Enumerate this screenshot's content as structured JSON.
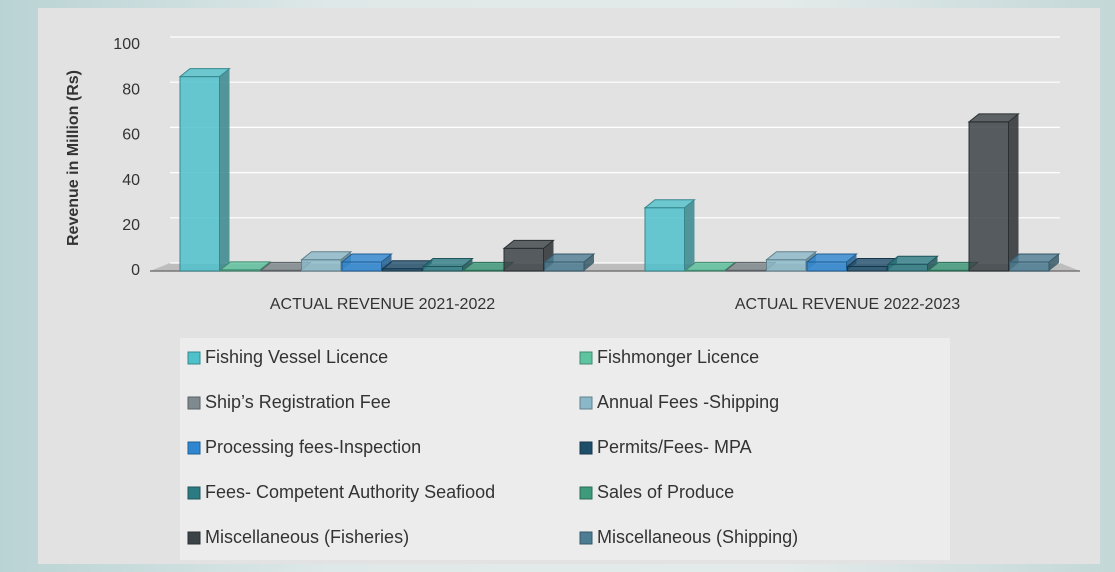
{
  "chart_data": {
    "type": "bar3d",
    "ylabel": "Revenue in Million (Rs)",
    "categories": [
      "ACTUAL REVENUE 2021-2022",
      "ACTUAL REVENUE 2022-2023"
    ],
    "ylim": [
      0,
      100
    ],
    "yticks": [
      0,
      20,
      40,
      60,
      80,
      100
    ],
    "grid": true,
    "legend": "bottom",
    "series": [
      {
        "name": "Fishing Vessel Licence",
        "color": "#4fc1cb",
        "values": [
          86,
          28
        ]
      },
      {
        "name": "Fishmonger Licence",
        "color": "#5ec4a0",
        "values": [
          0.5,
          0.3
        ]
      },
      {
        "name": "Ship’s Registration Fee",
        "color": "#7f8a8f",
        "values": [
          0.3,
          0.3
        ]
      },
      {
        "name": "Annual Fees -Shipping",
        "color": "#8bb8c8",
        "values": [
          5,
          5
        ]
      },
      {
        "name": "Processing fees-Inspection",
        "color": "#2e86d1",
        "values": [
          4,
          4
        ]
      },
      {
        "name": "Permits/Fees- MPA",
        "color": "#1f4e6b",
        "values": [
          1,
          2
        ]
      },
      {
        "name": "Fees- Competent Authority Seafiood",
        "color": "#2c7a82",
        "values": [
          2,
          3
        ]
      },
      {
        "name": "Sales of Produce",
        "color": "#3d9a7a",
        "values": [
          0.3,
          0.3
        ]
      },
      {
        "name": "Miscellaneous (Fisheries)",
        "color": "#3c4346",
        "values": [
          10,
          66
        ]
      },
      {
        "name": "Miscellaneous (Shipping)",
        "color": "#4d7d93",
        "values": [
          4,
          4
        ]
      }
    ]
  }
}
